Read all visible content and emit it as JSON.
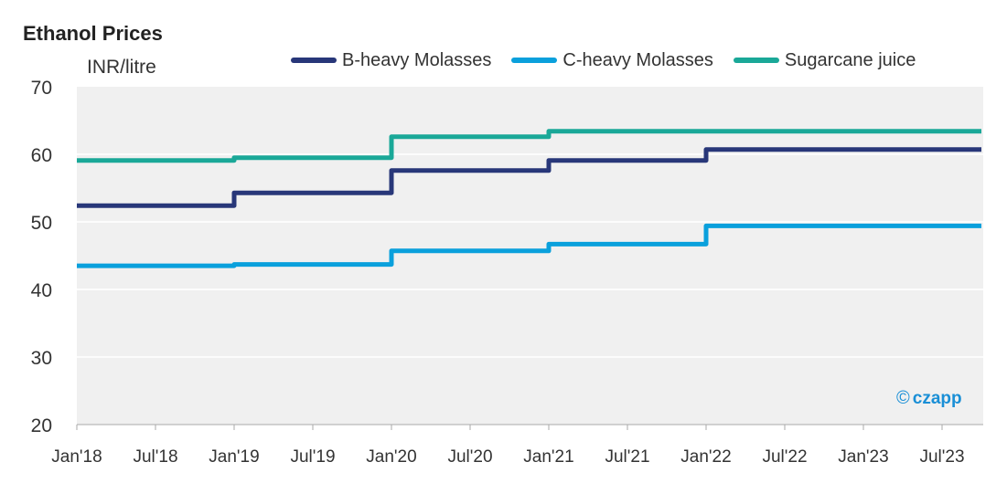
{
  "chart_data": {
    "type": "line",
    "title": "Ethanol Prices",
    "ylabel": "INR/litre",
    "xlabel": "",
    "ylim": [
      20,
      70
    ],
    "yticks": [
      20,
      30,
      40,
      50,
      60,
      70
    ],
    "x_range": [
      "2018-01",
      "2023-10"
    ],
    "x_ticks": [
      {
        "date": "2018-01",
        "label": "Jan'18"
      },
      {
        "date": "2018-07",
        "label": "Jul'18"
      },
      {
        "date": "2019-01",
        "label": "Jan'19"
      },
      {
        "date": "2019-07",
        "label": "Jul'19"
      },
      {
        "date": "2020-01",
        "label": "Jan'20"
      },
      {
        "date": "2020-07",
        "label": "Jul'20"
      },
      {
        "date": "2021-01",
        "label": "Jan'21"
      },
      {
        "date": "2021-07",
        "label": "Jul'21"
      },
      {
        "date": "2022-01",
        "label": "Jan'22"
      },
      {
        "date": "2022-07",
        "label": "Jul'22"
      },
      {
        "date": "2023-01",
        "label": "Jan'23"
      },
      {
        "date": "2023-07",
        "label": "Jul'23"
      }
    ],
    "line_style": "step",
    "grid": true,
    "legend_position": "top-right",
    "series": [
      {
        "name": "B-heavy Molasses",
        "color": "#283779",
        "points": [
          {
            "x": "2018-01",
            "y": 52.4
          },
          {
            "x": "2019-01",
            "y": 54.3
          },
          {
            "x": "2020-01",
            "y": 57.6
          },
          {
            "x": "2021-01",
            "y": 59.1
          },
          {
            "x": "2022-01",
            "y": 60.7
          },
          {
            "x": "2023-10",
            "y": 60.7
          }
        ]
      },
      {
        "name": "C-heavy Molasses",
        "color": "#0aa0dc",
        "points": [
          {
            "x": "2018-01",
            "y": 43.5
          },
          {
            "x": "2019-01",
            "y": 43.7
          },
          {
            "x": "2020-01",
            "y": 45.7
          },
          {
            "x": "2021-01",
            "y": 46.7
          },
          {
            "x": "2022-01",
            "y": 49.4
          },
          {
            "x": "2023-10",
            "y": 49.4
          }
        ]
      },
      {
        "name": "Sugarcane juice",
        "color": "#1aa898",
        "points": [
          {
            "x": "2018-01",
            "y": 59.1
          },
          {
            "x": "2019-01",
            "y": 59.5
          },
          {
            "x": "2020-01",
            "y": 62.6
          },
          {
            "x": "2021-01",
            "y": 63.4
          },
          {
            "x": "2023-10",
            "y": 63.4
          }
        ]
      }
    ]
  },
  "watermark": {
    "symbol": "©",
    "text": "czapp",
    "color": "#1a8fd6"
  },
  "colors": {
    "plot_background": "#f0f0f0",
    "gridline": "#ffffff",
    "axis": "#aaaaaa"
  }
}
